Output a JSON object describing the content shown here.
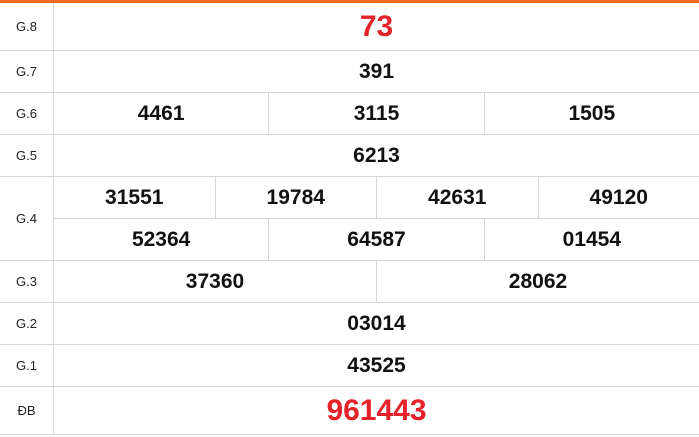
{
  "prizes": [
    {
      "label": "G.8",
      "rows": [
        [
          "73"
        ]
      ],
      "highlight": true
    },
    {
      "label": "G.7",
      "rows": [
        [
          "391"
        ]
      ]
    },
    {
      "label": "G.6",
      "rows": [
        [
          "4461",
          "3115",
          "1505"
        ]
      ]
    },
    {
      "label": "G.5",
      "rows": [
        [
          "6213"
        ]
      ]
    },
    {
      "label": "G.4",
      "rows": [
        [
          "31551",
          "19784",
          "42631",
          "49120"
        ],
        [
          "52364",
          "64587",
          "01454"
        ]
      ]
    },
    {
      "label": "G.3",
      "rows": [
        [
          "37360",
          "28062"
        ]
      ]
    },
    {
      "label": "G.2",
      "rows": [
        [
          "03014"
        ]
      ]
    },
    {
      "label": "G.1",
      "rows": [
        [
          "43525"
        ]
      ]
    },
    {
      "label": "ĐB",
      "rows": [
        [
          "961443"
        ]
      ],
      "highlight": true
    }
  ],
  "colors": {
    "accent": "#f26b21",
    "highlight": "#e5212a",
    "border": "#d6d6d6"
  }
}
